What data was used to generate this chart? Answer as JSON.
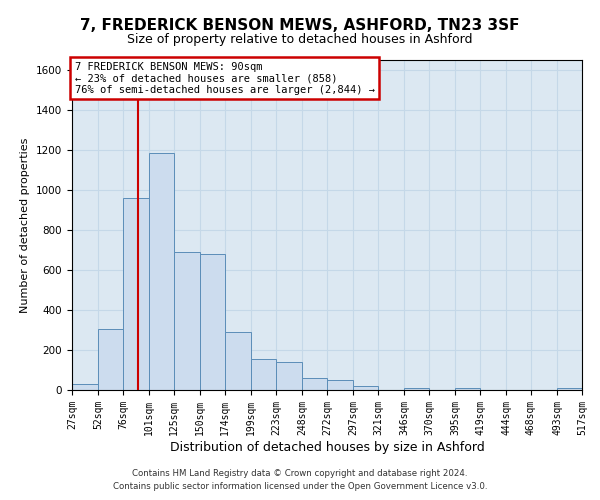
{
  "title": "7, FREDERICK BENSON MEWS, ASHFORD, TN23 3SF",
  "subtitle": "Size of property relative to detached houses in Ashford",
  "xlabel": "Distribution of detached houses by size in Ashford",
  "ylabel": "Number of detached properties",
  "footer1": "Contains HM Land Registry data © Crown copyright and database right 2024.",
  "footer2": "Contains public sector information licensed under the Open Government Licence v3.0.",
  "bin_edges": [
    27,
    52,
    76,
    101,
    125,
    150,
    174,
    199,
    223,
    248,
    272,
    297,
    321,
    346,
    370,
    395,
    419,
    444,
    468,
    493,
    517
  ],
  "bar_heights": [
    30,
    305,
    960,
    1185,
    690,
    680,
    290,
    155,
    140,
    60,
    50,
    20,
    0,
    8,
    0,
    8,
    0,
    0,
    0,
    8
  ],
  "bar_color": "#ccdcee",
  "bar_edge_color": "#5b8db8",
  "property_line_x": 90,
  "property_line_color": "#cc0000",
  "ylim": [
    0,
    1650
  ],
  "xlim": [
    27,
    517
  ],
  "annotation_text": "7 FREDERICK BENSON MEWS: 90sqm\n← 23% of detached houses are smaller (858)\n76% of semi-detached houses are larger (2,844) →",
  "grid_color": "#c5d8e8",
  "bg_color": "#dce8f2",
  "yticks": [
    0,
    200,
    400,
    600,
    800,
    1000,
    1200,
    1400,
    1600
  ],
  "title_fontsize": 11,
  "subtitle_fontsize": 9,
  "ylabel_fontsize": 8,
  "xlabel_fontsize": 9,
  "tick_fontsize": 7,
  "annotation_fontsize": 7.5
}
